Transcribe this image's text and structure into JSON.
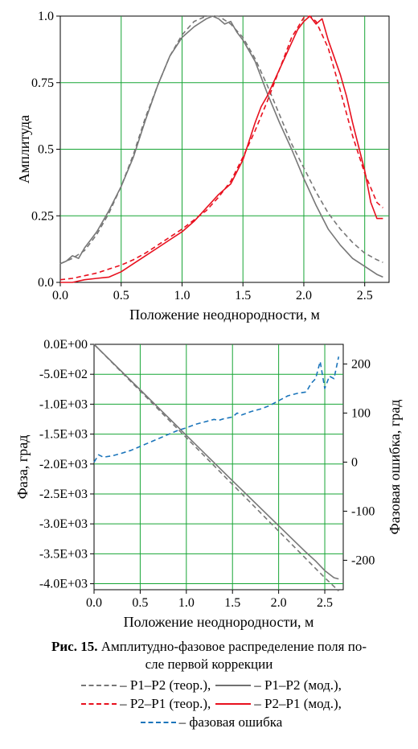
{
  "chart_data": [
    {
      "type": "line",
      "xlabel": "Положение неоднородности, м",
      "ylabel": "Амплитуда",
      "xlim": [
        0,
        2.7
      ],
      "ylim": [
        0,
        1
      ],
      "xticks": [
        "0.0",
        "0.5",
        "1.0",
        "1.5",
        "2.0",
        "2.5"
      ],
      "yticks": [
        "0.0",
        "0.25",
        "0.5",
        "0.75",
        "1.0"
      ],
      "grid": true,
      "colors": {
        "gray": "#777777",
        "red": "#e8101e",
        "grid": "#17a535"
      },
      "series": [
        {
          "id": "p1p2_theor",
          "style": "dashed",
          "color": "gray",
          "x": [
            0,
            0.1,
            0.2,
            0.3,
            0.4,
            0.5,
            0.6,
            0.7,
            0.8,
            0.9,
            1.0,
            1.1,
            1.2,
            1.3,
            1.4,
            1.5,
            1.6,
            1.7,
            1.8,
            1.9,
            2.0,
            2.1,
            2.2,
            2.3,
            2.4,
            2.5,
            2.6,
            2.65
          ],
          "y": [
            0.07,
            0.09,
            0.12,
            0.18,
            0.26,
            0.36,
            0.48,
            0.62,
            0.74,
            0.85,
            0.93,
            0.98,
            1.0,
            1.0,
            0.97,
            0.92,
            0.84,
            0.74,
            0.63,
            0.52,
            0.43,
            0.34,
            0.26,
            0.2,
            0.15,
            0.11,
            0.085,
            0.075
          ]
        },
        {
          "id": "p1p2_model",
          "style": "solid",
          "color": "gray",
          "x": [
            0,
            0.05,
            0.1,
            0.15,
            0.2,
            0.3,
            0.4,
            0.5,
            0.6,
            0.7,
            0.8,
            0.9,
            1.0,
            1.1,
            1.2,
            1.25,
            1.3,
            1.35,
            1.4,
            1.45,
            1.5,
            1.6,
            1.7,
            1.8,
            1.9,
            2.0,
            2.1,
            2.2,
            2.3,
            2.4,
            2.5,
            2.6,
            2.65
          ],
          "y": [
            0.07,
            0.08,
            0.1,
            0.09,
            0.13,
            0.19,
            0.27,
            0.36,
            0.47,
            0.61,
            0.74,
            0.85,
            0.92,
            0.96,
            0.99,
            1.0,
            0.99,
            0.97,
            0.98,
            0.94,
            0.91,
            0.83,
            0.71,
            0.6,
            0.5,
            0.39,
            0.29,
            0.2,
            0.14,
            0.09,
            0.06,
            0.03,
            0.02
          ]
        },
        {
          "id": "p2p1_theor",
          "style": "dashed",
          "color": "red",
          "x": [
            0,
            0.1,
            0.2,
            0.3,
            0.4,
            0.5,
            0.6,
            0.7,
            0.8,
            0.9,
            1.0,
            1.1,
            1.2,
            1.3,
            1.4,
            1.5,
            1.6,
            1.7,
            1.8,
            1.9,
            2.0,
            2.05,
            2.1,
            2.2,
            2.3,
            2.4,
            2.5,
            2.6,
            2.65
          ],
          "y": [
            0.01,
            0.015,
            0.025,
            0.035,
            0.05,
            0.065,
            0.085,
            0.11,
            0.14,
            0.17,
            0.2,
            0.235,
            0.27,
            0.32,
            0.38,
            0.47,
            0.57,
            0.68,
            0.8,
            0.92,
            0.995,
            1.0,
            0.98,
            0.88,
            0.72,
            0.55,
            0.41,
            0.3,
            0.28
          ]
        },
        {
          "id": "p2p1_model",
          "style": "solid",
          "color": "red",
          "x": [
            0,
            0.1,
            0.2,
            0.3,
            0.4,
            0.5,
            0.6,
            0.7,
            0.8,
            0.9,
            1.0,
            1.1,
            1.2,
            1.3,
            1.4,
            1.5,
            1.55,
            1.6,
            1.65,
            1.7,
            1.8,
            1.9,
            1.95,
            2.0,
            2.05,
            2.1,
            2.15,
            2.2,
            2.3,
            2.35,
            2.4,
            2.5,
            2.55,
            2.6,
            2.65
          ],
          "y": [
            0.0,
            0.0,
            0.01,
            0.015,
            0.02,
            0.04,
            0.07,
            0.1,
            0.13,
            0.16,
            0.19,
            0.23,
            0.28,
            0.33,
            0.37,
            0.46,
            0.53,
            0.6,
            0.66,
            0.7,
            0.8,
            0.9,
            0.95,
            0.98,
            1.0,
            0.97,
            0.99,
            0.91,
            0.78,
            0.7,
            0.6,
            0.42,
            0.3,
            0.24,
            0.24
          ]
        }
      ]
    },
    {
      "type": "line",
      "xlabel": "Положение неоднородности, м",
      "ylabel": "Фаза, град",
      "y2label": "Фазовая ошибка, град",
      "xlim": [
        0,
        2.7
      ],
      "ylim": [
        -4100,
        0
      ],
      "y2lim": [
        -260,
        240
      ],
      "xticks": [
        "0.0",
        "0.5",
        "1.0",
        "1.5",
        "2.0",
        "2.5"
      ],
      "yticks": [
        "0.0E+00",
        "-5.0E+02",
        "-1.0E+03",
        "-1.5E+03",
        "-2.0E+03",
        "-2.5E+03",
        "-3.0E+03",
        "-3.5E+03",
        "-4.0E+03"
      ],
      "y2ticks": [
        "200",
        "100",
        "0",
        "-100",
        "-200"
      ],
      "grid": true,
      "colors": {
        "gray": "#777777",
        "blue": "#1b75bb",
        "grid": "#17a535"
      },
      "series": [
        {
          "id": "phase_theor",
          "style": "dashed",
          "color": "gray",
          "axis": "left",
          "x": [
            0,
            0.5,
            1.0,
            1.5,
            2.0,
            2.5,
            2.65
          ],
          "y": [
            0,
            -780,
            -1560,
            -2340,
            -3120,
            -3900,
            -4120
          ]
        },
        {
          "id": "phase_model",
          "style": "solid",
          "color": "gray",
          "axis": "left",
          "x": [
            0,
            0.5,
            1.0,
            1.5,
            2.0,
            2.3,
            2.4,
            2.5,
            2.6,
            2.65
          ],
          "y": [
            0,
            -760,
            -1520,
            -2280,
            -3030,
            -3480,
            -3620,
            -3780,
            -3900,
            -3920
          ]
        },
        {
          "id": "phase_error",
          "style": "dashed",
          "color": "blue",
          "axis": "right",
          "x": [
            0,
            0.05,
            0.1,
            0.2,
            0.3,
            0.4,
            0.5,
            0.6,
            0.7,
            0.8,
            0.9,
            1.0,
            1.1,
            1.2,
            1.3,
            1.35,
            1.4,
            1.5,
            1.55,
            1.6,
            1.7,
            1.8,
            1.9,
            2.0,
            2.1,
            2.2,
            2.3,
            2.35,
            2.4,
            2.45,
            2.5,
            2.55,
            2.6,
            2.65
          ],
          "y": [
            0,
            15,
            10,
            13,
            18,
            24,
            32,
            40,
            48,
            56,
            64,
            70,
            77,
            82,
            87,
            85,
            88,
            92,
            100,
            96,
            103,
            108,
            115,
            125,
            135,
            140,
            143,
            160,
            170,
            205,
            150,
            175,
            170,
            215
          ]
        }
      ]
    }
  ],
  "caption": {
    "figure_label": "Рис. 15.",
    "line1_rest": "Амплитудно-фазовое распределение поля по-",
    "line2": "сле первой коррекции"
  },
  "legend": [
    {
      "id": "p1p2_theor",
      "prefix": "",
      "label": "– Р1–Р2 (теор.),"
    },
    {
      "id": "p1p2_model",
      "prefix": "",
      "label": "– Р1–Р2 (мод.),"
    },
    {
      "id": "p2p1_theor",
      "prefix": "",
      "label": "– Р2–Р1 (теор.),"
    },
    {
      "id": "p2p1_model",
      "prefix": "",
      "label": "– Р2–Р1 (мод.),"
    },
    {
      "id": "phase_error",
      "prefix": "",
      "label": "– фазовая ошибка"
    }
  ]
}
